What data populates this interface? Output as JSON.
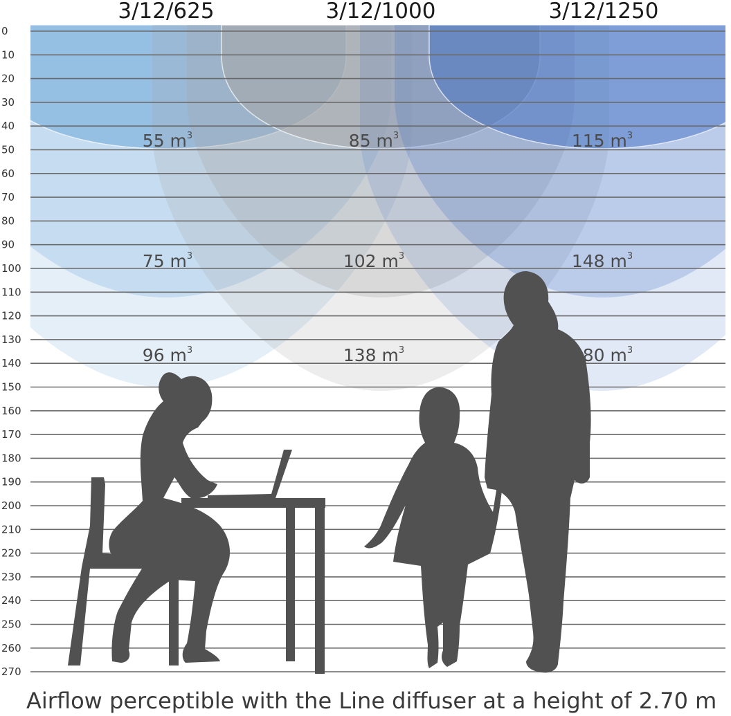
{
  "headers": [
    "3/12/625",
    "3/12/1000",
    "3/12/1250"
  ],
  "y_axis": {
    "ticks": [
      "0",
      "10",
      "20",
      "30",
      "40",
      "50",
      "60",
      "70",
      "80",
      "90",
      "100",
      "110",
      "120",
      "130",
      "140",
      "150",
      "160",
      "170",
      "180",
      "190",
      "200",
      "210",
      "220",
      "230",
      "240",
      "250",
      "260",
      "270"
    ]
  },
  "volumes": [
    {
      "col": 0,
      "value": "55 m",
      "sup": "3"
    },
    {
      "col": 1,
      "value": "85 m",
      "sup": "3"
    },
    {
      "col": 2,
      "value": "115 m",
      "sup": "3"
    },
    {
      "col": 0,
      "value": "75 m",
      "sup": "3"
    },
    {
      "col": 1,
      "value": "102 m",
      "sup": "3"
    },
    {
      "col": 2,
      "value": "148 m",
      "sup": "3"
    },
    {
      "col": 0,
      "value": "96 m",
      "sup": "3"
    },
    {
      "col": 1,
      "value": "138 m",
      "sup": "3"
    },
    {
      "col": 2,
      "value": "180 m",
      "sup": "3"
    }
  ],
  "caption": "Airflow perceptible with the Line diffuser at a height of 2.70 m",
  "colors": {
    "blue_left": "#5b9bd5",
    "grey_center": "#a6a6a6",
    "blue_right": "#4472c4",
    "silhouette": "#515151",
    "grid": "#6a6a6a"
  },
  "illustration": [
    "seated-woman-with-laptop",
    "child",
    "standing-woman"
  ]
}
